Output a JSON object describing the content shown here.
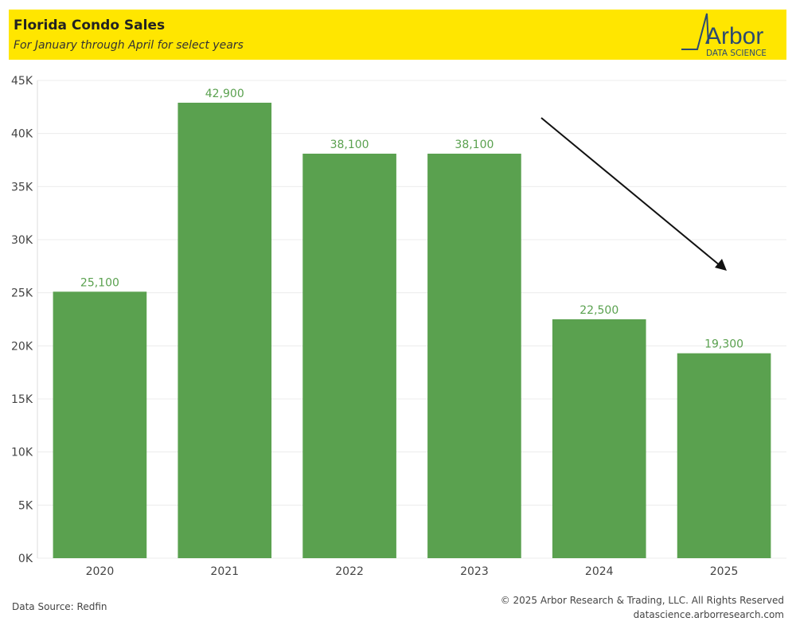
{
  "header": {
    "title": "Florida Condo Sales",
    "subtitle": "For January through April  for select years",
    "logo_text": "Arbor",
    "logo_subtext": "DATA SCIENCE"
  },
  "colors": {
    "header_bg": "#ffe600",
    "bar": "#5aa14f",
    "label": "#5aa14f",
    "axis_text": "#444444",
    "logo": "#2c4a70"
  },
  "chart_data": {
    "type": "bar",
    "categories": [
      "2020",
      "2021",
      "2022",
      "2023",
      "2024",
      "2025"
    ],
    "values": [
      25100,
      42900,
      38100,
      38100,
      22500,
      19300
    ],
    "value_labels": [
      "25,100",
      "42,900",
      "38,100",
      "38,100",
      "22,500",
      "19,300"
    ],
    "title": "Florida Condo Sales",
    "subtitle": "For January through April  for select years",
    "xlabel": "",
    "ylabel": "",
    "ylim": [
      0,
      45000
    ],
    "yticks": [
      0,
      5000,
      10000,
      15000,
      20000,
      25000,
      30000,
      35000,
      40000,
      45000
    ],
    "ytick_labels": [
      "0K",
      "5K",
      "10K",
      "15K",
      "20K",
      "25K",
      "30K",
      "35K",
      "40K",
      "45K"
    ],
    "grid": true,
    "legend": "none",
    "annotations": [
      {
        "type": "arrow",
        "direction": "down-right",
        "description": "declining trend arrow from 2023 toward 2025"
      }
    ]
  },
  "footer": {
    "source": "Data Source: Redfin",
    "copyright": "© 2025 Arbor Research & Trading, LLC. All Rights Reserved",
    "website": "datascience.arborresearch.com"
  }
}
